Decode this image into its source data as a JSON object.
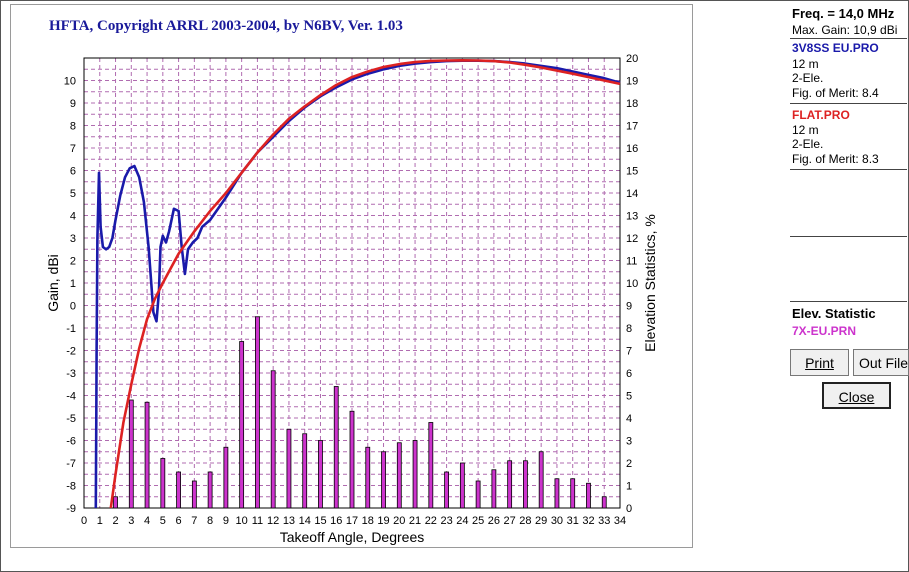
{
  "chart_data": {
    "type": "bar+line",
    "title": "HFTA, Copyright ARRL 2003-2004, by N6BV, Ver. 1.03",
    "xlabel": "Takeoff Angle, Degrees",
    "ylabel": "Gain, dBi",
    "y2label": "Elevation Statistics, %",
    "xlim": [
      0,
      34
    ],
    "ylim": [
      -9,
      11
    ],
    "y2lim": [
      0,
      20
    ],
    "grid": true,
    "x_ticks": [
      0,
      1,
      2,
      3,
      4,
      5,
      6,
      7,
      8,
      9,
      10,
      11,
      12,
      13,
      14,
      15,
      16,
      17,
      18,
      19,
      20,
      21,
      22,
      23,
      24,
      25,
      26,
      27,
      28,
      29,
      30,
      31,
      32,
      33,
      34
    ],
    "y_ticks": [
      -9,
      -8,
      -7,
      -6,
      -5,
      -4,
      -3,
      -2,
      -1,
      0,
      1,
      2,
      3,
      4,
      5,
      6,
      7,
      8,
      9,
      10
    ],
    "y_tick_labels": [
      "-9",
      "-8",
      "-7",
      "-6",
      "-5",
      "-4",
      "-3",
      "-2",
      "-1",
      "0",
      "1",
      "2",
      "3",
      "4",
      "5",
      "6",
      "7",
      "8",
      "9",
      "10"
    ],
    "y2_ticks": [
      0,
      1,
      2,
      3,
      4,
      5,
      6,
      7,
      8,
      9,
      10,
      11,
      12,
      13,
      14,
      15,
      16,
      17,
      18,
      19,
      20
    ],
    "bars": {
      "name": "7X-EU.PRN",
      "color": "#cc33cc",
      "x": [
        2,
        3,
        4,
        5,
        6,
        7,
        8,
        9,
        10,
        11,
        12,
        13,
        14,
        15,
        16,
        17,
        18,
        19,
        20,
        21,
        22,
        23,
        24,
        25,
        26,
        27,
        28,
        29,
        30,
        31,
        32,
        33
      ],
      "values": [
        0.5,
        4.8,
        4.7,
        2.2,
        1.6,
        1.2,
        1.6,
        2.7,
        7.4,
        8.5,
        6.1,
        3.5,
        3.3,
        3.0,
        5.4,
        4.3,
        2.7,
        2.5,
        2.9,
        3.0,
        3.8,
        1.6,
        2.0,
        1.2,
        1.7,
        2.1,
        2.1,
        2.5,
        1.3,
        1.3,
        1.1,
        0.5
      ]
    },
    "series": [
      {
        "name": "3V8SS EU.PRO",
        "color": "#1a1aaa",
        "x": [
          0.75,
          0.78,
          0.8,
          0.85,
          0.95,
          1.05,
          1.2,
          1.4,
          1.6,
          1.8,
          2.0,
          2.3,
          2.6,
          2.9,
          3.2,
          3.5,
          3.8,
          4.1,
          4.4,
          4.6,
          4.75,
          4.85,
          5.0,
          5.2,
          5.4,
          5.7,
          6.0,
          6.2,
          6.4,
          6.6,
          6.9,
          7.2,
          7.5,
          8,
          9,
          10,
          11,
          12,
          13,
          14,
          15,
          16,
          17,
          18,
          19,
          20,
          21,
          22,
          23,
          24,
          25,
          26,
          27,
          28,
          29,
          30,
          31,
          32,
          33,
          34
        ],
        "values": [
          -9,
          -5,
          -2,
          3,
          5.9,
          3.5,
          2.6,
          2.5,
          2.6,
          3.0,
          3.8,
          4.9,
          5.7,
          6.1,
          6.2,
          5.7,
          4.6,
          2.6,
          -0.3,
          -0.7,
          0.6,
          2.6,
          3.1,
          2.8,
          3.3,
          4.3,
          4.2,
          2.6,
          1.4,
          2.5,
          2.8,
          3.0,
          3.5,
          3.8,
          4.8,
          5.9,
          6.8,
          7.5,
          8.2,
          8.8,
          9.3,
          9.7,
          10.05,
          10.3,
          10.5,
          10.65,
          10.75,
          10.82,
          10.86,
          10.88,
          10.88,
          10.86,
          10.82,
          10.75,
          10.65,
          10.55,
          10.4,
          10.25,
          10.1,
          9.9
        ]
      },
      {
        "name": "FLAT.PRO",
        "color": "#dd2222",
        "x": [
          1.7,
          2,
          2.5,
          3,
          3.5,
          4,
          4.5,
          5,
          6,
          7,
          8,
          9,
          10,
          11,
          12,
          13,
          14,
          15,
          16,
          17,
          18,
          19,
          20,
          21,
          22,
          23,
          24,
          25,
          26,
          27,
          28,
          29,
          30,
          31,
          32,
          33,
          34
        ],
        "values": [
          -9,
          -7.5,
          -5.2,
          -3.5,
          -1.9,
          -0.6,
          0.3,
          1.0,
          2.3,
          3.3,
          4.2,
          5.0,
          5.9,
          6.8,
          7.6,
          8.3,
          8.85,
          9.35,
          9.8,
          10.15,
          10.4,
          10.6,
          10.73,
          10.82,
          10.87,
          10.89,
          10.9,
          10.89,
          10.86,
          10.8,
          10.7,
          10.58,
          10.44,
          10.3,
          10.15,
          10.0,
          9.85
        ]
      }
    ]
  },
  "side_panel": {
    "freq": "Freq. = 14,0 MHz",
    "max_gain": "Max. Gain: 10,9 dBi",
    "file1": {
      "name": "3V8SS EU.PRO",
      "height": "12 m",
      "type": "2-Ele.",
      "merit": "Fig. of Merit:  8.4"
    },
    "file2": {
      "name": "FLAT.PRO",
      "height": "12 m",
      "type": "2-Ele.",
      "merit": "Fig. of Merit:  8.3"
    },
    "elev_heading": "Elev. Statistic",
    "elev_file": "7X-EU.PRN"
  },
  "buttons": {
    "print_label": "Print",
    "outfile_label": "Out File",
    "close_label": "Close"
  }
}
